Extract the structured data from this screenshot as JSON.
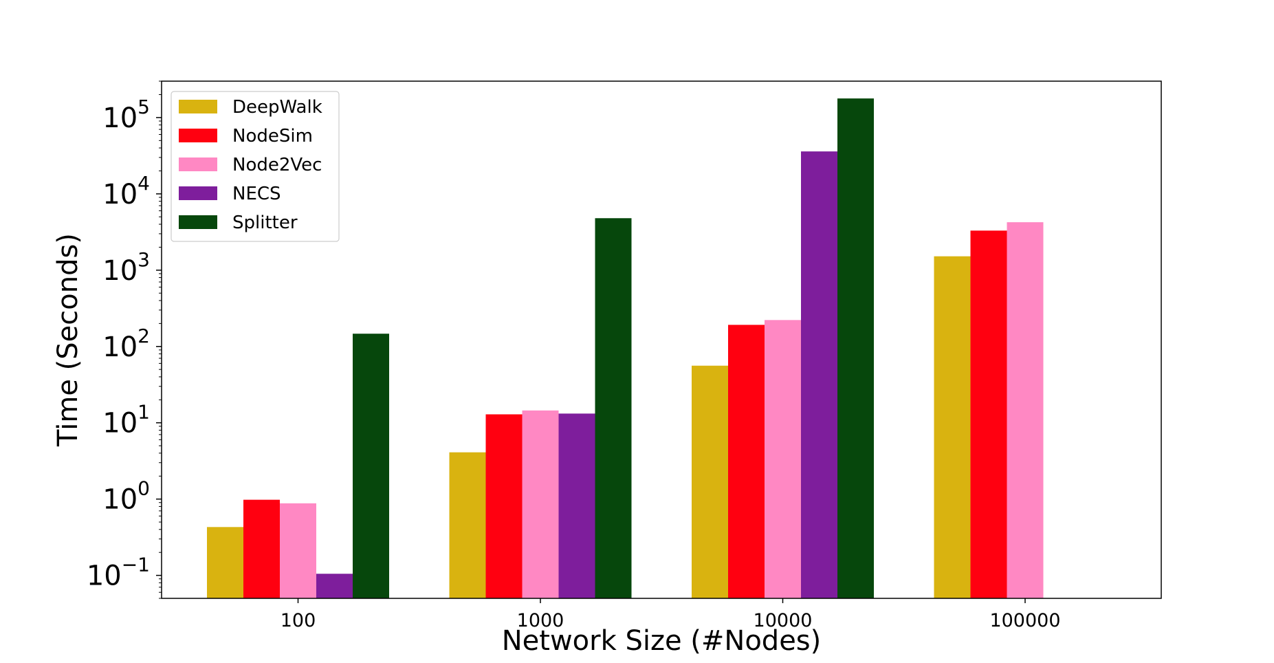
{
  "chart_data": {
    "type": "bar",
    "title": "",
    "xlabel": "Network Size (#Nodes)",
    "ylabel": "Time (Seconds)",
    "yscale": "log",
    "ylim": [
      0.05,
      300000
    ],
    "grid": false,
    "legend_position": "top-left",
    "categories": [
      "100",
      "1000",
      "10000",
      "100000"
    ],
    "y_ticks": [
      {
        "base": "10",
        "exp": "−1",
        "value": 0.1
      },
      {
        "base": "10",
        "exp": "0",
        "value": 1
      },
      {
        "base": "10",
        "exp": "1",
        "value": 10
      },
      {
        "base": "10",
        "exp": "2",
        "value": 100
      },
      {
        "base": "10",
        "exp": "3",
        "value": 1000
      },
      {
        "base": "10",
        "exp": "4",
        "value": 10000
      },
      {
        "base": "10",
        "exp": "5",
        "value": 100000
      }
    ],
    "series": [
      {
        "name": "DeepWalk",
        "color": "#d9b310",
        "values": [
          0.43,
          4.1,
          56,
          1520
        ]
      },
      {
        "name": "NodeSim",
        "color": "#ff0010",
        "values": [
          0.98,
          12.9,
          192,
          3300
        ]
      },
      {
        "name": "Node2Vec",
        "color": "#ff88c3",
        "values": [
          0.88,
          14.5,
          222,
          4250
        ]
      },
      {
        "name": "NECS",
        "color": "#7e1e9c",
        "values": [
          0.105,
          13.2,
          36000,
          null
        ]
      },
      {
        "name": "Splitter",
        "color": "#06470c",
        "values": [
          147,
          4800,
          178000,
          null
        ]
      }
    ]
  }
}
